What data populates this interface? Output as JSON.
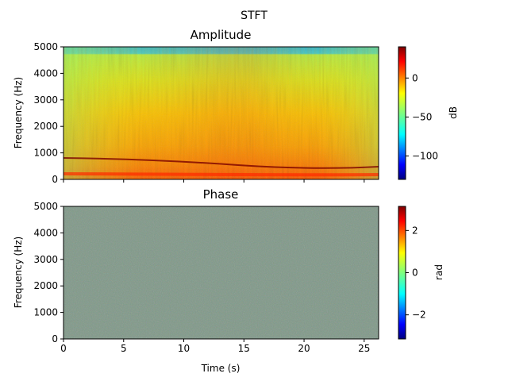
{
  "chart_data": [
    {
      "type": "heatmap",
      "suptitle": "STFT",
      "title": "Amplitude",
      "xlabel": "",
      "ylabel": "Frequency (Hz)",
      "xlim": [
        0,
        26.2
      ],
      "ylim": [
        0,
        5000
      ],
      "xticks": [
        0,
        5,
        10,
        15,
        20,
        25
      ],
      "yticks": [
        0,
        1000,
        2000,
        3000,
        4000,
        5000
      ],
      "colorbar": {
        "label": "dB",
        "range": [
          -130,
          40
        ],
        "ticks": [
          0,
          -50,
          -100
        ],
        "colormap": "jet"
      },
      "description_values": {
        "dominant_band_hz": [
          0,
          1000
        ],
        "main_partial_hz_start": 800,
        "main_partial_hz_end": 450,
        "upper_cutoff_hz": 4800,
        "energy_peak_time_s": 15
      }
    },
    {
      "type": "heatmap",
      "title": "Phase",
      "xlabel": "Time (s)",
      "ylabel": "Frequency (Hz)",
      "xlim": [
        0,
        26.2
      ],
      "ylim": [
        0,
        5000
      ],
      "xticks": [
        0,
        5,
        10,
        15,
        20,
        25
      ],
      "yticks": [
        0,
        1000,
        2000,
        3000,
        4000,
        5000
      ],
      "colorbar": {
        "label": "rad",
        "range": [
          -3.14159,
          3.14159
        ],
        "ticks": [
          2,
          0,
          -2
        ],
        "colormap": "jet"
      }
    }
  ],
  "colors": {
    "jet": [
      "#00007f",
      "#0000ff",
      "#007fff",
      "#00ffff",
      "#7fff7f",
      "#ffff00",
      "#ff7f00",
      "#ff0000",
      "#7f0000"
    ]
  }
}
